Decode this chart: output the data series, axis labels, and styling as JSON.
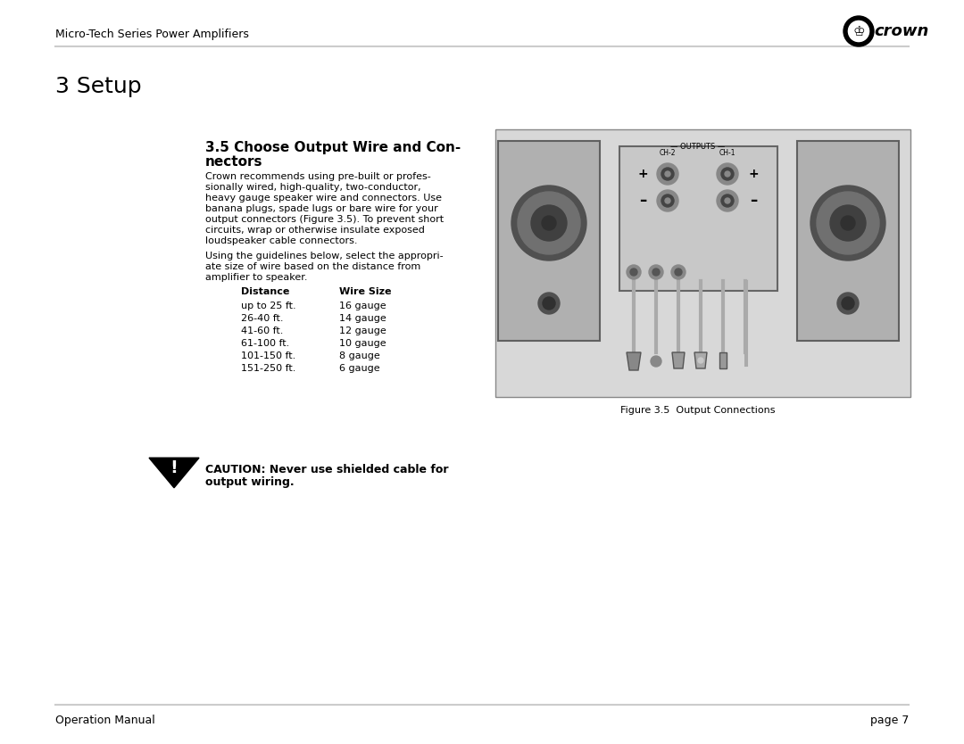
{
  "page_title": "Micro-Tech Series Power Amplifiers",
  "section_title": "3 Setup",
  "subsection_title": "3.5 Choose Output Wire and Con-\nnectors",
  "body_text1": "Crown recommends using pre-built or profes-\nsionally wired, high-quality, two-conductor,\nheavy gauge speaker wire and connectors. Use\nbanana plugs, spade lugs or bare wire for your\noutput connectors (Figure 3.5). To prevent short\ncircuits, wrap or otherwise insulate exposed\nloudspeaker cable connectors.",
  "body_text2": "Using the guidelines below, select the appropri-\nate size of wire based on the distance from\namplifier to speaker.",
  "table_header": [
    "Distance",
    "Wire Size"
  ],
  "table_rows": [
    [
      "up to 25 ft.",
      "16 gauge"
    ],
    [
      "26-40 ft.",
      "14 gauge"
    ],
    [
      "41-60 ft.",
      "12 gauge"
    ],
    [
      "61-100 ft.",
      "10 gauge"
    ],
    [
      "101-150 ft.",
      "8 gauge"
    ],
    [
      "151-250 ft.",
      "6 gauge"
    ]
  ],
  "caution_text": "CAUTION: Never use shielded cable for\noutput wiring.",
  "figure_caption": "Figure 3.5  Output Connections",
  "footer_left": "Operation Manual",
  "footer_right": "page 7",
  "bg_color": "#ffffff",
  "text_color": "#000000",
  "header_line_color": "#cccccc",
  "header_font_size": 9,
  "section_font_size": 18,
  "subsection_font_size": 11,
  "body_font_size": 8,
  "table_font_size": 8,
  "footer_font_size": 9
}
